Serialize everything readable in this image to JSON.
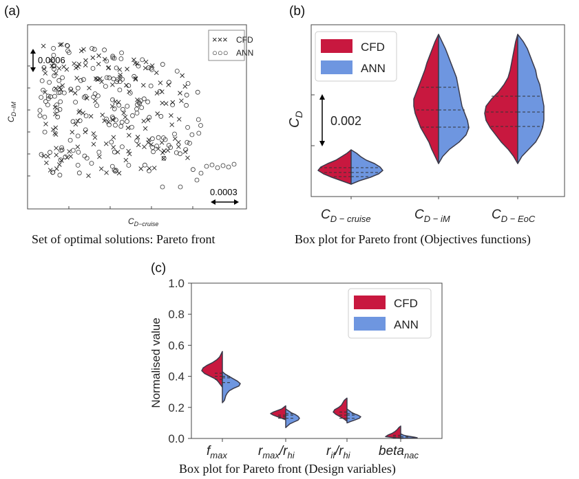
{
  "colors": {
    "cfd": "#c8183f",
    "ann": "#6e96e0",
    "outline": "#3a3a4a",
    "frame": "#444444"
  },
  "panel_a": {
    "tag": "(a)",
    "caption": "Set of optimal solutions: Pareto front",
    "ylabel": "C",
    "ylabel_sub": "D−iM",
    "xlabel": "C",
    "xlabel_sub": "D−cruise",
    "scale_y": "0.0006",
    "scale_x": "0.0003",
    "legend": [
      {
        "marker": "×××",
        "label": "CFD"
      },
      {
        "marker": "○○○",
        "label": "ANN"
      }
    ]
  },
  "panel_b": {
    "tag": "(b)",
    "caption": "Box plot for Pareto front (Objectives functions)",
    "ylabel": "C",
    "ylabel_sub": "D",
    "scale_y": "0.002",
    "categories": [
      {
        "main": "C",
        "sub": "D − cruise"
      },
      {
        "main": "C",
        "sub": "D − iM"
      },
      {
        "main": "C",
        "sub": "D − EoC"
      }
    ],
    "legend": [
      "CFD",
      "ANN"
    ]
  },
  "panel_c": {
    "tag": "(c)",
    "caption": "Box plot for Pareto front (Design variables)",
    "ylabel": "Normalised value",
    "yticks": [
      "1.0",
      "0.8",
      "0.6",
      "0.4",
      "0.2",
      "0.0"
    ],
    "categories": [
      {
        "main": "f",
        "sub": "max",
        "tail": "",
        "tail_sub": ""
      },
      {
        "main": "r",
        "sub": "max",
        "tail": "/r",
        "tail_sub": "hi"
      },
      {
        "main": "r",
        "sub": "if",
        "tail": "/r",
        "tail_sub": "hi"
      },
      {
        "main": "beta",
        "sub": "nac",
        "tail": "",
        "tail_sub": ""
      }
    ],
    "legend": [
      "CFD",
      "ANN"
    ]
  },
  "chart_data": [
    {
      "type": "scatter",
      "title": "Set of optimal solutions: Pareto front",
      "xlabel": "C_D-cruise",
      "ylabel": "C_D-iM",
      "series": [
        {
          "name": "CFD"
        },
        {
          "name": "ANN"
        }
      ],
      "grid": false,
      "legend": "top-right"
    },
    {
      "type": "violin",
      "title": "Box plot for Pareto front (Objectives functions)",
      "ylabel": "C_D",
      "categories": [
        "C_D-cruise",
        "C_D-iM",
        "C_D-EoC"
      ],
      "series": [
        {
          "name": "CFD"
        },
        {
          "name": "ANN"
        }
      ],
      "legend": "top-left"
    },
    {
      "type": "violin",
      "title": "Box plot for Pareto front (Design variables)",
      "ylabel": "Normalised value",
      "ylim": [
        0,
        1.0
      ],
      "categories": [
        "f_max",
        "r_max/r_hi",
        "r_if/r_hi",
        "beta_nac"
      ],
      "series": [
        {
          "name": "CFD",
          "min": [
            0.33,
            0.12,
            0.11,
            0.0
          ],
          "q1": [
            0.38,
            0.13,
            0.13,
            0.0
          ],
          "median": [
            0.4,
            0.14,
            0.15,
            0.01
          ],
          "q3": [
            0.42,
            0.15,
            0.17,
            0.02
          ],
          "max": [
            0.56,
            0.21,
            0.26,
            0.08
          ]
        },
        {
          "name": "ANN",
          "min": [
            0.23,
            0.07,
            0.1,
            0.0
          ],
          "q1": [
            0.36,
            0.13,
            0.13,
            0.0
          ],
          "median": [
            0.39,
            0.15,
            0.15,
            0.01
          ],
          "q3": [
            0.4,
            0.16,
            0.16,
            0.01
          ],
          "max": [
            0.43,
            0.19,
            0.19,
            0.03
          ]
        }
      ],
      "grid": false,
      "legend": "top-right"
    }
  ]
}
